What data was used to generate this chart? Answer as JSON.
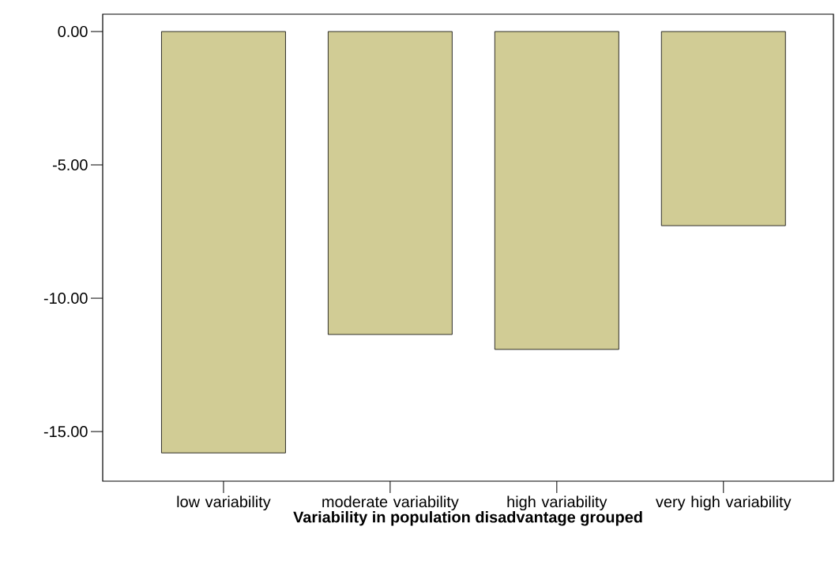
{
  "chart_data": {
    "type": "bar",
    "xlabel": "Variability in population disadvantage grouped",
    "categories": [
      "low variability",
      "moderate variability",
      "high variability",
      "very high variability"
    ],
    "values": [
      -15.8,
      -11.36,
      -11.92,
      -7.28
    ],
    "color": "#d1cc95",
    "ylim": [
      -16.86,
      0.65
    ],
    "yticks": [
      {
        "value": -15,
        "label": "-15.00"
      },
      {
        "value": -10,
        "label": "-10.00"
      },
      {
        "value": -5,
        "label": "-5.00"
      },
      {
        "value": 0,
        "label": "0.00"
      }
    ],
    "grid": false
  }
}
